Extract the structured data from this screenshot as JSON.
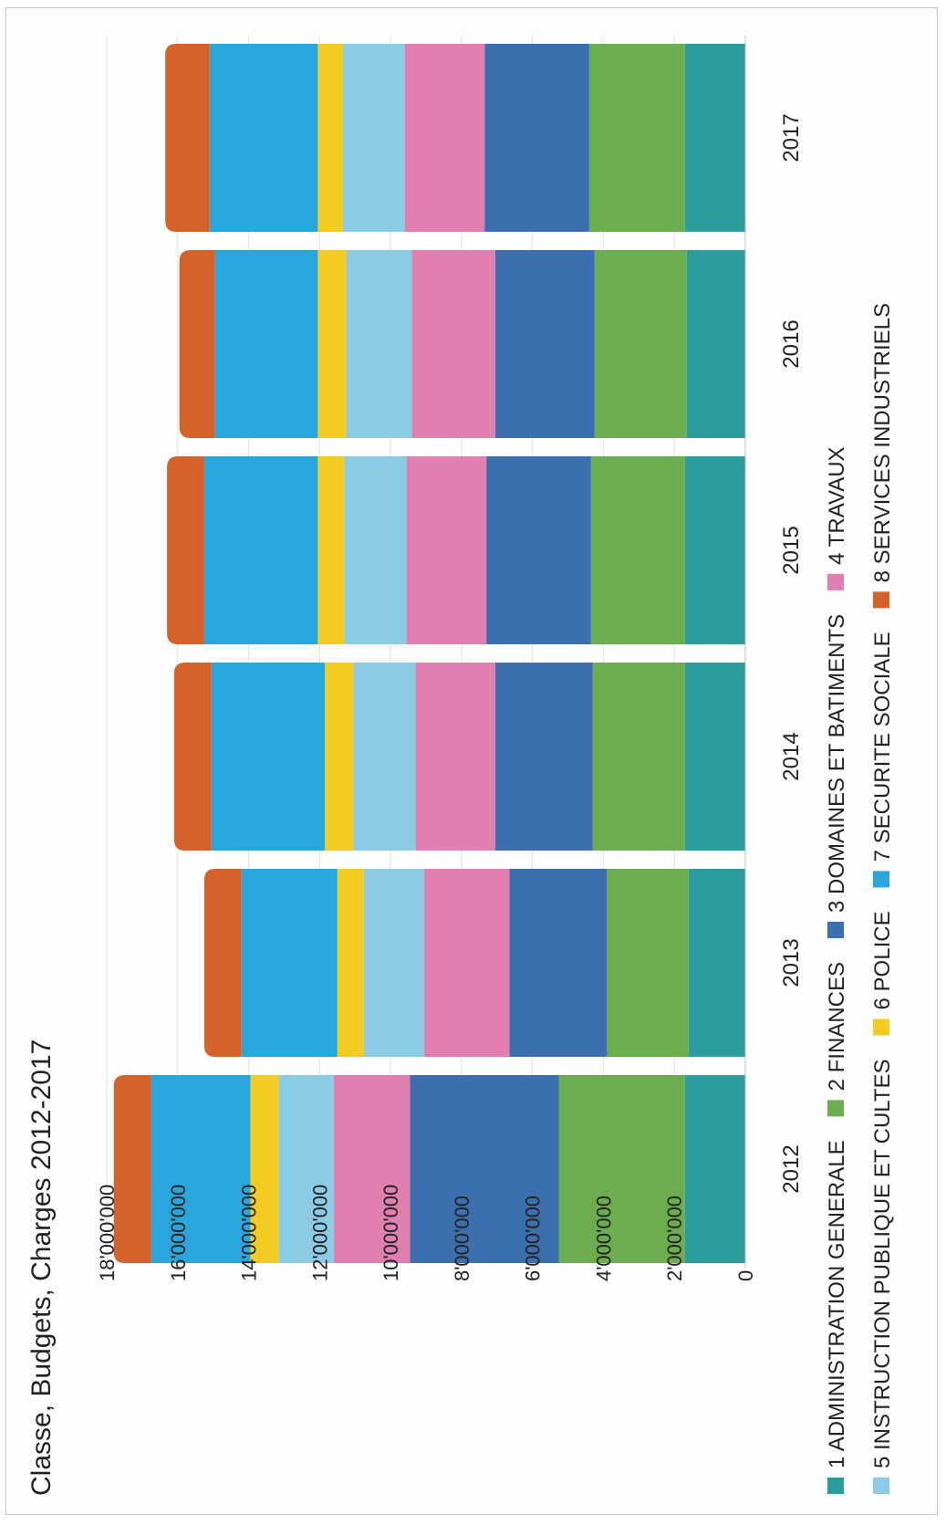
{
  "chart_data": {
    "type": "bar",
    "stacked": true,
    "title": "Classe, Budgets, Charges 2012-2017",
    "categories": [
      "2012",
      "2013",
      "2014",
      "2015",
      "2016",
      "2017"
    ],
    "ylim": [
      0,
      18000000
    ],
    "y_ticks": [
      "0",
      "2'000'000",
      "4'000'000",
      "6'000'000",
      "8'000'000",
      "10'000'000",
      "12'000'000",
      "14'000'000",
      "16'000'000",
      "18'000'000"
    ],
    "y_tick_values": [
      0,
      2000000,
      4000000,
      6000000,
      8000000,
      10000000,
      12000000,
      14000000,
      16000000,
      18000000
    ],
    "grid": true,
    "legend_position": "bottom",
    "orientation": "rotated 90° counter-clockwise",
    "series": [
      {
        "name": "1 ADMINISTRATION GENERALE",
        "color": "#2a9d9f",
        "values": [
          1700000,
          1600000,
          1700000,
          1700000,
          1650000,
          1700000
        ]
      },
      {
        "name": "2 FINANCES",
        "color": "#6cae4f",
        "values": [
          3550000,
          2300000,
          2600000,
          2650000,
          2600000,
          2700000
        ]
      },
      {
        "name": "3 DOMAINES ET BATIMENTS",
        "color": "#3c6fb0",
        "values": [
          4200000,
          2750000,
          2750000,
          2950000,
          2800000,
          2950000
        ]
      },
      {
        "name": "4 TRAVAUX",
        "color": "#e07fb0",
        "values": [
          2150000,
          2400000,
          2250000,
          2250000,
          2350000,
          2250000
        ]
      },
      {
        "name": "5 INSTRUCTION PUBLIQUE ET CULTES",
        "color": "#8bcbe6",
        "values": [
          1550000,
          1700000,
          1750000,
          1750000,
          1850000,
          1750000
        ]
      },
      {
        "name": "6 POLICE",
        "color": "#f2cc22",
        "values": [
          800000,
          750000,
          800000,
          750000,
          800000,
          700000
        ]
      },
      {
        "name": "7 SECURITE SOCIALE",
        "color": "#29a6dc",
        "values": [
          2800000,
          2700000,
          3200000,
          3200000,
          2900000,
          3050000
        ]
      },
      {
        "name": "8 SERVICES INDUSTRIELS",
        "color": "#d4622a",
        "values": [
          1050000,
          1050000,
          1050000,
          1050000,
          1000000,
          1250000
        ]
      }
    ]
  }
}
